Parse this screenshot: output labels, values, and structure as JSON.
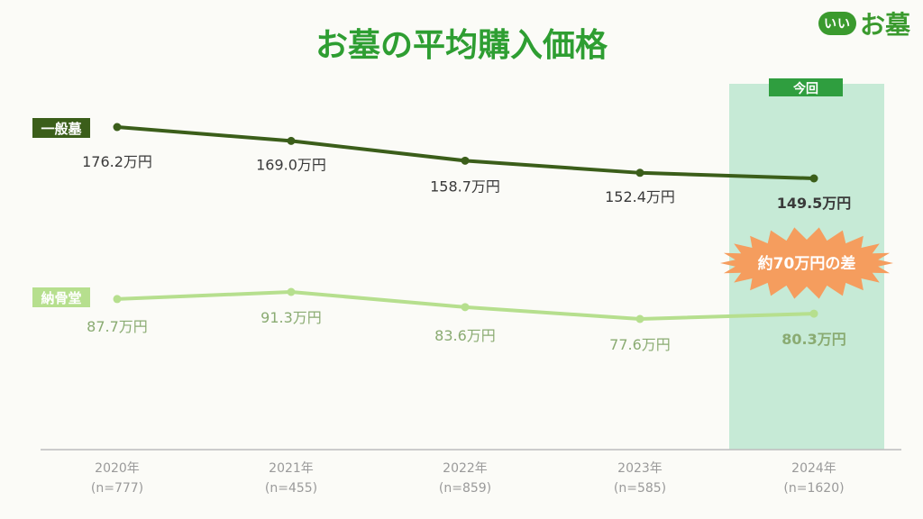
{
  "chart_data": {
    "type": "line",
    "title": "お墓の平均購入価格",
    "categories": [
      "2020年",
      "2021年",
      "2022年",
      "2023年",
      "2024年"
    ],
    "category_notes": [
      "(n=777)",
      "(n=455)",
      "(n=859)",
      "(n=585)",
      "(n=1620)"
    ],
    "series": [
      {
        "name": "一般墓",
        "values": [
          176.2,
          169.0,
          158.7,
          152.4,
          149.5
        ],
        "labels": [
          "176.2万円",
          "169.0万円",
          "158.7万円",
          "152.4万円",
          "149.5万円"
        ],
        "color": "#3b5e1a"
      },
      {
        "name": "納骨堂",
        "values": [
          87.7,
          91.3,
          83.6,
          77.6,
          80.3
        ],
        "labels": [
          "87.7万円",
          "91.3万円",
          "83.6万円",
          "77.6万円",
          "80.3万円"
        ],
        "color": "#b6df8e"
      }
    ],
    "highlight": {
      "category": "2024年",
      "label": "今回",
      "color": "#c6ead6"
    },
    "annotation": "約70万円の差",
    "grid": false
  },
  "colors": {
    "title": "#2e9e32",
    "axis": "#bdbdbd",
    "label_dark": "#3a3a3a",
    "label_light": "#8aab72",
    "callout": "#f59d5e",
    "highlight_badge": "#2f9e3f"
  },
  "brand": {
    "badge": "いい",
    "text": "お墓"
  }
}
